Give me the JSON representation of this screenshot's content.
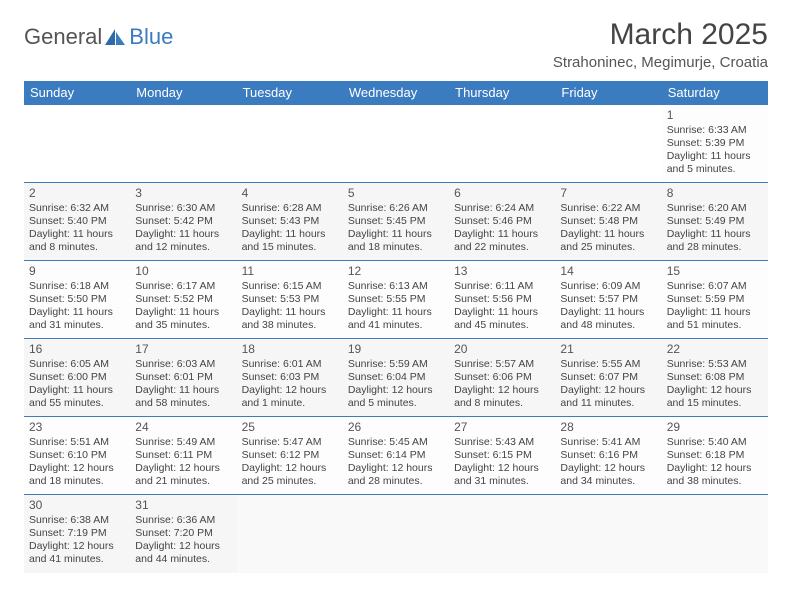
{
  "brand": {
    "part1": "General",
    "part2": "Blue"
  },
  "title": "March 2025",
  "location": "Strahoninec, Megimurje, Croatia",
  "colors": {
    "header_bg": "#3b7bbf",
    "header_text": "#ffffff",
    "border": "#3b7bbf",
    "text": "#444444"
  },
  "dayHeaders": [
    "Sunday",
    "Monday",
    "Tuesday",
    "Wednesday",
    "Thursday",
    "Friday",
    "Saturday"
  ],
  "weeks": [
    [
      null,
      null,
      null,
      null,
      null,
      null,
      {
        "n": "1",
        "sr": "Sunrise: 6:33 AM",
        "ss": "Sunset: 5:39 PM",
        "dl": "Daylight: 11 hours and 5 minutes."
      }
    ],
    [
      {
        "n": "2",
        "sr": "Sunrise: 6:32 AM",
        "ss": "Sunset: 5:40 PM",
        "dl": "Daylight: 11 hours and 8 minutes."
      },
      {
        "n": "3",
        "sr": "Sunrise: 6:30 AM",
        "ss": "Sunset: 5:42 PM",
        "dl": "Daylight: 11 hours and 12 minutes."
      },
      {
        "n": "4",
        "sr": "Sunrise: 6:28 AM",
        "ss": "Sunset: 5:43 PM",
        "dl": "Daylight: 11 hours and 15 minutes."
      },
      {
        "n": "5",
        "sr": "Sunrise: 6:26 AM",
        "ss": "Sunset: 5:45 PM",
        "dl": "Daylight: 11 hours and 18 minutes."
      },
      {
        "n": "6",
        "sr": "Sunrise: 6:24 AM",
        "ss": "Sunset: 5:46 PM",
        "dl": "Daylight: 11 hours and 22 minutes."
      },
      {
        "n": "7",
        "sr": "Sunrise: 6:22 AM",
        "ss": "Sunset: 5:48 PM",
        "dl": "Daylight: 11 hours and 25 minutes."
      },
      {
        "n": "8",
        "sr": "Sunrise: 6:20 AM",
        "ss": "Sunset: 5:49 PM",
        "dl": "Daylight: 11 hours and 28 minutes."
      }
    ],
    [
      {
        "n": "9",
        "sr": "Sunrise: 6:18 AM",
        "ss": "Sunset: 5:50 PM",
        "dl": "Daylight: 11 hours and 31 minutes."
      },
      {
        "n": "10",
        "sr": "Sunrise: 6:17 AM",
        "ss": "Sunset: 5:52 PM",
        "dl": "Daylight: 11 hours and 35 minutes."
      },
      {
        "n": "11",
        "sr": "Sunrise: 6:15 AM",
        "ss": "Sunset: 5:53 PM",
        "dl": "Daylight: 11 hours and 38 minutes."
      },
      {
        "n": "12",
        "sr": "Sunrise: 6:13 AM",
        "ss": "Sunset: 5:55 PM",
        "dl": "Daylight: 11 hours and 41 minutes."
      },
      {
        "n": "13",
        "sr": "Sunrise: 6:11 AM",
        "ss": "Sunset: 5:56 PM",
        "dl": "Daylight: 11 hours and 45 minutes."
      },
      {
        "n": "14",
        "sr": "Sunrise: 6:09 AM",
        "ss": "Sunset: 5:57 PM",
        "dl": "Daylight: 11 hours and 48 minutes."
      },
      {
        "n": "15",
        "sr": "Sunrise: 6:07 AM",
        "ss": "Sunset: 5:59 PM",
        "dl": "Daylight: 11 hours and 51 minutes."
      }
    ],
    [
      {
        "n": "16",
        "sr": "Sunrise: 6:05 AM",
        "ss": "Sunset: 6:00 PM",
        "dl": "Daylight: 11 hours and 55 minutes."
      },
      {
        "n": "17",
        "sr": "Sunrise: 6:03 AM",
        "ss": "Sunset: 6:01 PM",
        "dl": "Daylight: 11 hours and 58 minutes."
      },
      {
        "n": "18",
        "sr": "Sunrise: 6:01 AM",
        "ss": "Sunset: 6:03 PM",
        "dl": "Daylight: 12 hours and 1 minute."
      },
      {
        "n": "19",
        "sr": "Sunrise: 5:59 AM",
        "ss": "Sunset: 6:04 PM",
        "dl": "Daylight: 12 hours and 5 minutes."
      },
      {
        "n": "20",
        "sr": "Sunrise: 5:57 AM",
        "ss": "Sunset: 6:06 PM",
        "dl": "Daylight: 12 hours and 8 minutes."
      },
      {
        "n": "21",
        "sr": "Sunrise: 5:55 AM",
        "ss": "Sunset: 6:07 PM",
        "dl": "Daylight: 12 hours and 11 minutes."
      },
      {
        "n": "22",
        "sr": "Sunrise: 5:53 AM",
        "ss": "Sunset: 6:08 PM",
        "dl": "Daylight: 12 hours and 15 minutes."
      }
    ],
    [
      {
        "n": "23",
        "sr": "Sunrise: 5:51 AM",
        "ss": "Sunset: 6:10 PM",
        "dl": "Daylight: 12 hours and 18 minutes."
      },
      {
        "n": "24",
        "sr": "Sunrise: 5:49 AM",
        "ss": "Sunset: 6:11 PM",
        "dl": "Daylight: 12 hours and 21 minutes."
      },
      {
        "n": "25",
        "sr": "Sunrise: 5:47 AM",
        "ss": "Sunset: 6:12 PM",
        "dl": "Daylight: 12 hours and 25 minutes."
      },
      {
        "n": "26",
        "sr": "Sunrise: 5:45 AM",
        "ss": "Sunset: 6:14 PM",
        "dl": "Daylight: 12 hours and 28 minutes."
      },
      {
        "n": "27",
        "sr": "Sunrise: 5:43 AM",
        "ss": "Sunset: 6:15 PM",
        "dl": "Daylight: 12 hours and 31 minutes."
      },
      {
        "n": "28",
        "sr": "Sunrise: 5:41 AM",
        "ss": "Sunset: 6:16 PM",
        "dl": "Daylight: 12 hours and 34 minutes."
      },
      {
        "n": "29",
        "sr": "Sunrise: 5:40 AM",
        "ss": "Sunset: 6:18 PM",
        "dl": "Daylight: 12 hours and 38 minutes."
      }
    ],
    [
      {
        "n": "30",
        "sr": "Sunrise: 6:38 AM",
        "ss": "Sunset: 7:19 PM",
        "dl": "Daylight: 12 hours and 41 minutes."
      },
      {
        "n": "31",
        "sr": "Sunrise: 6:36 AM",
        "ss": "Sunset: 7:20 PM",
        "dl": "Daylight: 12 hours and 44 minutes."
      },
      null,
      null,
      null,
      null,
      null
    ]
  ]
}
